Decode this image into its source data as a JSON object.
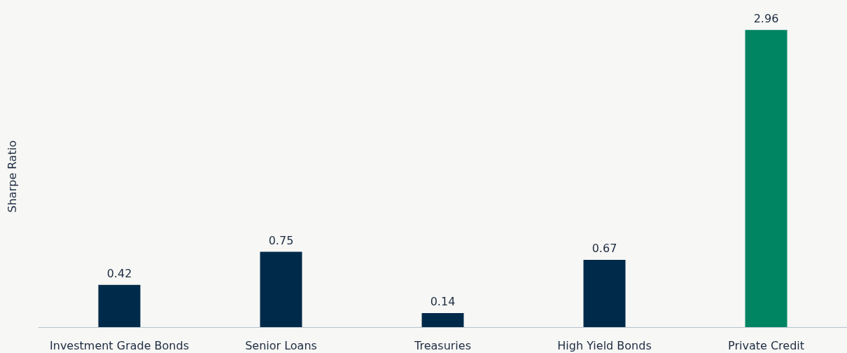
{
  "chart_data": {
    "type": "bar",
    "ylabel": "Sharpe Ratio",
    "categories": [
      "Investment Grade Bonds",
      "Senior Loans",
      "Treasuries",
      "High Yield Bonds",
      "Private Credit"
    ],
    "values": [
      0.42,
      0.75,
      0.14,
      0.67,
      2.96
    ],
    "colors": [
      "#002a4a",
      "#002a4a",
      "#002a4a",
      "#002a4a",
      "#008563"
    ],
    "data_labels": true
  }
}
